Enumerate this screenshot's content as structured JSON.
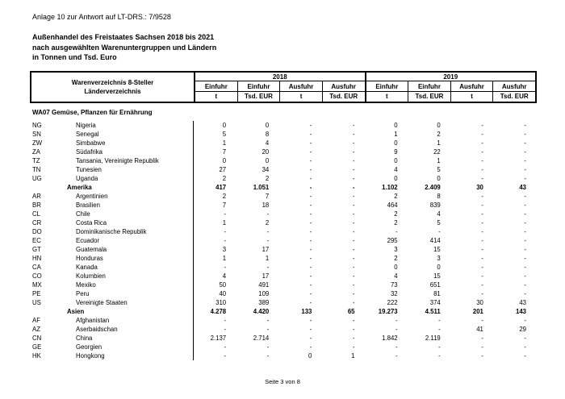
{
  "page": {
    "annotation": "Anlage 10 zur Antwort auf LT-DRS.: 7/9528",
    "title_lines": [
      "Außenhandel des Freistaates Sachsen 2018 bis 2021",
      "nach ausgewählten Warenuntergruppen und Ländern",
      "in Tonnen und Tsd. Euro"
    ],
    "footer": "Seite 3 von 8"
  },
  "table": {
    "header": {
      "col1_line1": "Warenverzeichnis 8-Steller",
      "col1_line2": "Länderverzeichnis",
      "year_groups": [
        {
          "year": "2018",
          "cols": [
            {
              "label": "Einfuhr",
              "unit": "t"
            },
            {
              "label": "Einfuhr",
              "unit": "Tsd. EUR"
            },
            {
              "label": "Ausfuhr",
              "unit": "t"
            },
            {
              "label": "Ausfuhr",
              "unit": "Tsd. EUR"
            }
          ]
        },
        {
          "year": "2019",
          "cols": [
            {
              "label": "Einfuhr",
              "unit": "t"
            },
            {
              "label": "Einfuhr",
              "unit": "Tsd. EUR"
            },
            {
              "label": "Ausfuhr",
              "unit": "t"
            },
            {
              "label": "Ausfuhr",
              "unit": "Tsd. EUR"
            }
          ]
        }
      ]
    },
    "section_title": "WA07 Gemüse, Pflanzen für Ernährung",
    "rows": [
      {
        "code": "NG",
        "name": "Nigeria",
        "bold": false,
        "values": [
          "0",
          "0",
          "-",
          "-",
          "0",
          "0",
          "-",
          "-"
        ]
      },
      {
        "code": "SN",
        "name": "Senegal",
        "bold": false,
        "values": [
          "5",
          "8",
          "-",
          "-",
          "1",
          "2",
          "-",
          "-"
        ]
      },
      {
        "code": "ZW",
        "name": "Simbabwe",
        "bold": false,
        "values": [
          "1",
          "4",
          "-",
          "-",
          "0",
          "1",
          "-",
          "-"
        ]
      },
      {
        "code": "ZA",
        "name": "Südafrika",
        "bold": false,
        "values": [
          "7",
          "20",
          "-",
          "-",
          "9",
          "22",
          "-",
          "-"
        ]
      },
      {
        "code": "TZ",
        "name": "Tansania, Vereinigte Republik",
        "bold": false,
        "values": [
          "0",
          "0",
          "-",
          "-",
          "0",
          "1",
          "-",
          "-"
        ]
      },
      {
        "code": "TN",
        "name": "Tunesien",
        "bold": false,
        "values": [
          "27",
          "34",
          "-",
          "-",
          "4",
          "5",
          "-",
          "-"
        ]
      },
      {
        "code": "UG",
        "name": "Uganda",
        "bold": false,
        "values": [
          "2",
          "2",
          "-",
          "-",
          "0",
          "0",
          "-",
          "-"
        ]
      },
      {
        "code": "",
        "name": "Amerika",
        "bold": true,
        "values": [
          "417",
          "1.051",
          "-",
          "-",
          "1.102",
          "2.409",
          "30",
          "43"
        ]
      },
      {
        "code": "AR",
        "name": "Argentinien",
        "bold": false,
        "values": [
          "2",
          "7",
          "-",
          "-",
          "2",
          "8",
          "-",
          "-"
        ]
      },
      {
        "code": "BR",
        "name": "Brasilien",
        "bold": false,
        "values": [
          "7",
          "18",
          "-",
          "-",
          "464",
          "839",
          "-",
          "-"
        ]
      },
      {
        "code": "CL",
        "name": "Chile",
        "bold": false,
        "values": [
          "-",
          "-",
          "-",
          "-",
          "2",
          "4",
          "-",
          "-"
        ]
      },
      {
        "code": "CR",
        "name": "Costa Rica",
        "bold": false,
        "values": [
          "1",
          "2",
          "-",
          "-",
          "2",
          "5",
          "-",
          "-"
        ]
      },
      {
        "code": "DO",
        "name": "Dominikanische Republik",
        "bold": false,
        "values": [
          "-",
          "-",
          "-",
          "-",
          "-",
          "-",
          "-",
          "-"
        ]
      },
      {
        "code": "EC",
        "name": "Ecuador",
        "bold": false,
        "values": [
          "-",
          "-",
          "-",
          "-",
          "295",
          "414",
          "-",
          "-"
        ]
      },
      {
        "code": "GT",
        "name": "Guatemala",
        "bold": false,
        "values": [
          "3",
          "17",
          "-",
          "-",
          "3",
          "15",
          "-",
          "-"
        ]
      },
      {
        "code": "HN",
        "name": "Honduras",
        "bold": false,
        "values": [
          "1",
          "1",
          "-",
          "-",
          "2",
          "3",
          "-",
          "-"
        ]
      },
      {
        "code": "CA",
        "name": "Kanada",
        "bold": false,
        "values": [
          "-",
          "-",
          "-",
          "-",
          "0",
          "0",
          "-",
          "-"
        ]
      },
      {
        "code": "CO",
        "name": "Kolumbien",
        "bold": false,
        "values": [
          "4",
          "17",
          "-",
          "-",
          "4",
          "15",
          "-",
          "-"
        ]
      },
      {
        "code": "MX",
        "name": "Mexiko",
        "bold": false,
        "values": [
          "50",
          "491",
          "-",
          "-",
          "73",
          "651",
          "-",
          "-"
        ]
      },
      {
        "code": "PE",
        "name": "Peru",
        "bold": false,
        "values": [
          "40",
          "109",
          "-",
          "-",
          "32",
          "81",
          "-",
          "-"
        ]
      },
      {
        "code": "US",
        "name": "Vereinigte Staaten",
        "bold": false,
        "values": [
          "310",
          "389",
          "-",
          "-",
          "222",
          "374",
          "30",
          "43"
        ]
      },
      {
        "code": "",
        "name": "Asien",
        "bold": true,
        "values": [
          "4.278",
          "4.420",
          "133",
          "65",
          "19.273",
          "4.511",
          "201",
          "143"
        ]
      },
      {
        "code": "AF",
        "name": "Afghanistan",
        "bold": false,
        "values": [
          "-",
          "-",
          "-",
          "-",
          "-",
          "-",
          "-",
          "-"
        ]
      },
      {
        "code": "AZ",
        "name": "Aserbaidschan",
        "bold": false,
        "values": [
          "-",
          "-",
          "-",
          "-",
          "-",
          "-",
          "41",
          "29"
        ]
      },
      {
        "code": "CN",
        "name": "China",
        "bold": false,
        "values": [
          "2.137",
          "2.714",
          "-",
          "-",
          "1.842",
          "2.119",
          "-",
          "-"
        ]
      },
      {
        "code": "GE",
        "name": "Georgien",
        "bold": false,
        "values": [
          "-",
          "-",
          "-",
          "-",
          "-",
          "-",
          "-",
          "-"
        ]
      },
      {
        "code": "HK",
        "name": "Hongkong",
        "bold": false,
        "values": [
          "-",
          "-",
          "0",
          "1",
          "-",
          "-",
          "-",
          "-"
        ]
      }
    ]
  }
}
